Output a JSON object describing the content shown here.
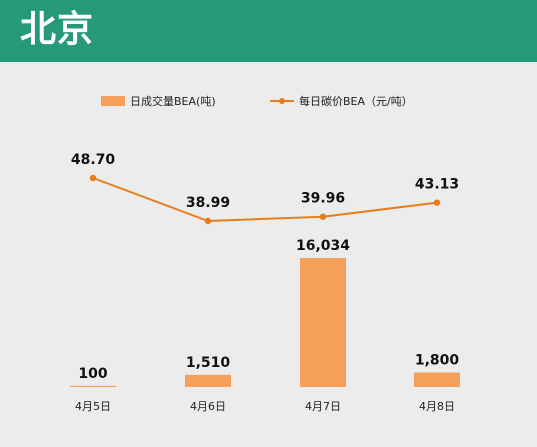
{
  "header": {
    "title": "北京"
  },
  "colors": {
    "header_bg": "#269a78",
    "bar": "#f4a05a",
    "line": "#e87d1e"
  },
  "chart_data": {
    "type": "bar+line",
    "categories": [
      "4月5日",
      "4月6日",
      "4月7日",
      "4月8日"
    ],
    "series": [
      {
        "name": "日成交量BEA(吨)",
        "type": "bar",
        "values": [
          100,
          1510,
          16034,
          1800
        ],
        "labels": [
          "100",
          "1,510",
          "16,034",
          "1,800"
        ]
      },
      {
        "name": "每日碳价BEA（元/吨）",
        "type": "line",
        "values": [
          48.7,
          38.99,
          39.96,
          43.13
        ],
        "labels": [
          "48.70",
          "38.99",
          "39.96",
          "43.13"
        ]
      }
    ],
    "legend_position": "top",
    "grid": false
  }
}
